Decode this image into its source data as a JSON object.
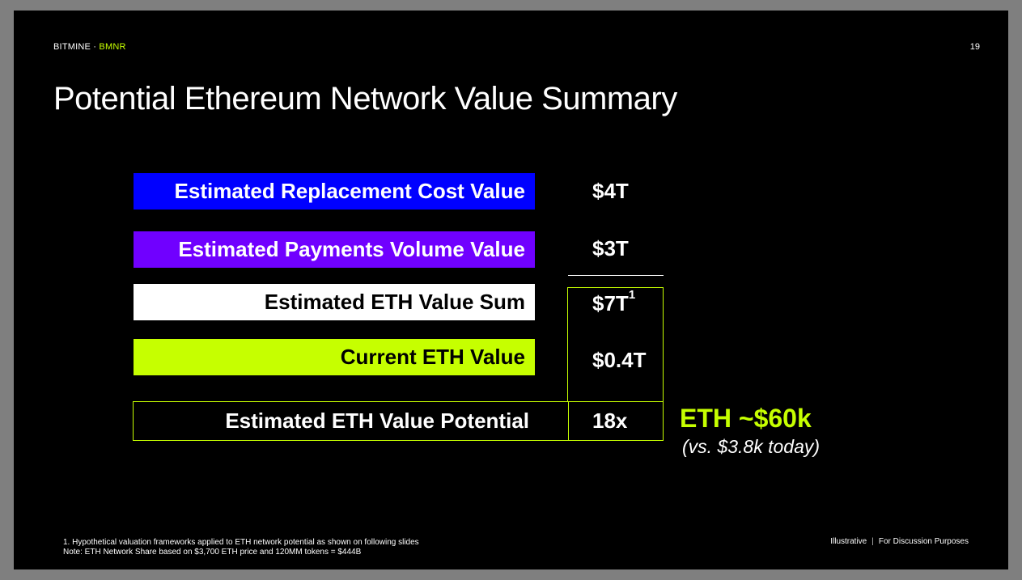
{
  "header": {
    "brand": "BITMINE",
    "separator": "·",
    "ticker": "BMNR",
    "page_number": "19"
  },
  "title": "Potential Ethereum Network Value Summary",
  "rows": {
    "replacement": {
      "label": "Estimated Replacement Cost Value",
      "value": "$4T",
      "color": "#0000ff"
    },
    "payments": {
      "label": "Estimated Payments Volume Value",
      "value": "$3T",
      "color": "#7000ff"
    },
    "sum": {
      "label": "Estimated ETH Value Sum",
      "value": "$7T",
      "footnote_marker": "1",
      "color": "#ffffff"
    },
    "current": {
      "label": "Current ETH Value",
      "value": "$0.4T",
      "color": "#c6ff00"
    },
    "potential": {
      "label": "Estimated ETH Value Potential",
      "value": "18x"
    }
  },
  "callout": {
    "target": "ETH ~$60k",
    "comparison": "(vs. $3.8k today)"
  },
  "footer": {
    "footnote_1": "1. Hypothetical valuation frameworks applied to ETH network potential as shown on following slides",
    "note": "Note: ETH Network Share based on $3,700 ETH price and 120MM tokens = $444B",
    "tag_illustrative": "Illustrative",
    "tag_separator": "|",
    "tag_discussion": "For Discussion Purposes"
  },
  "colors": {
    "accent": "#c6ff00",
    "background": "#000000"
  }
}
